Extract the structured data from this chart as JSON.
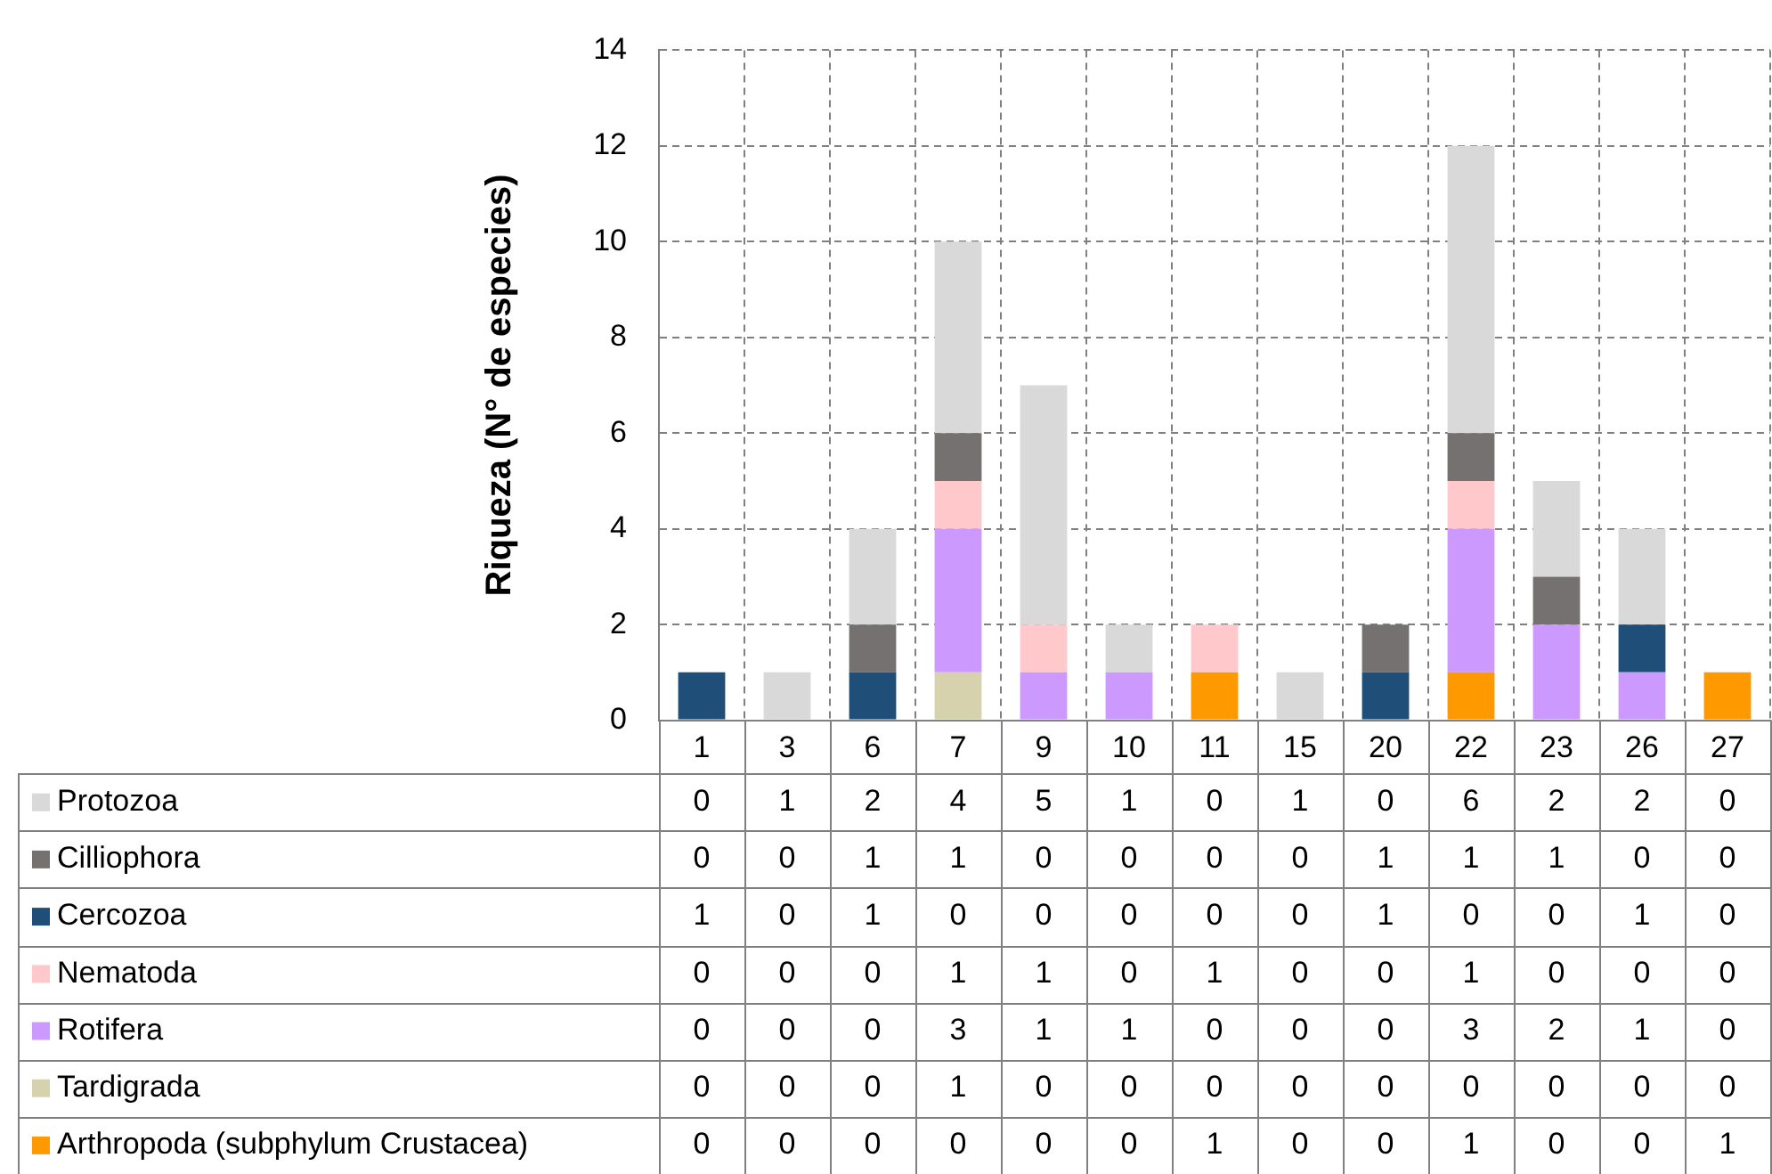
{
  "chart_data": {
    "type": "bar",
    "stacked": true,
    "ylabel": "Riqueza (N° de especies)",
    "categories": [
      "1",
      "3",
      "6",
      "7",
      "9",
      "10",
      "11",
      "15",
      "20",
      "22",
      "23",
      "26",
      "27"
    ],
    "series": [
      {
        "name": "Arthropoda (subphylum Crustacea)",
        "color": "#ff9900",
        "values": [
          0,
          0,
          0,
          0,
          0,
          0,
          1,
          0,
          0,
          1,
          0,
          0,
          1
        ]
      },
      {
        "name": "Tardigrada",
        "color": "#d6d2ae",
        "values": [
          0,
          0,
          0,
          1,
          0,
          0,
          0,
          0,
          0,
          0,
          0,
          0,
          0
        ]
      },
      {
        "name": "Rotifera",
        "color": "#cc99ff",
        "values": [
          0,
          0,
          0,
          3,
          1,
          1,
          0,
          0,
          0,
          3,
          2,
          1,
          0
        ]
      },
      {
        "name": "Nematoda",
        "color": "#ffc9cc",
        "values": [
          0,
          0,
          0,
          1,
          1,
          0,
          1,
          0,
          0,
          1,
          0,
          0,
          0
        ]
      },
      {
        "name": "Cercozoa",
        "color": "#1f4e79",
        "values": [
          1,
          0,
          1,
          0,
          0,
          0,
          0,
          0,
          1,
          0,
          0,
          1,
          0
        ]
      },
      {
        "name": "Cilliophora",
        "color": "#767171",
        "values": [
          0,
          0,
          1,
          1,
          0,
          0,
          0,
          0,
          1,
          1,
          1,
          0,
          0
        ]
      },
      {
        "name": "Protozoa",
        "color": "#d9d9d9",
        "values": [
          0,
          1,
          2,
          4,
          5,
          1,
          0,
          1,
          0,
          6,
          2,
          2,
          0
        ]
      }
    ],
    "ylim": [
      0,
      14
    ],
    "yticks": [
      0,
      2,
      4,
      6,
      8,
      10,
      12,
      14
    ],
    "grid": true,
    "legend": "bottom",
    "data_labels": true
  }
}
